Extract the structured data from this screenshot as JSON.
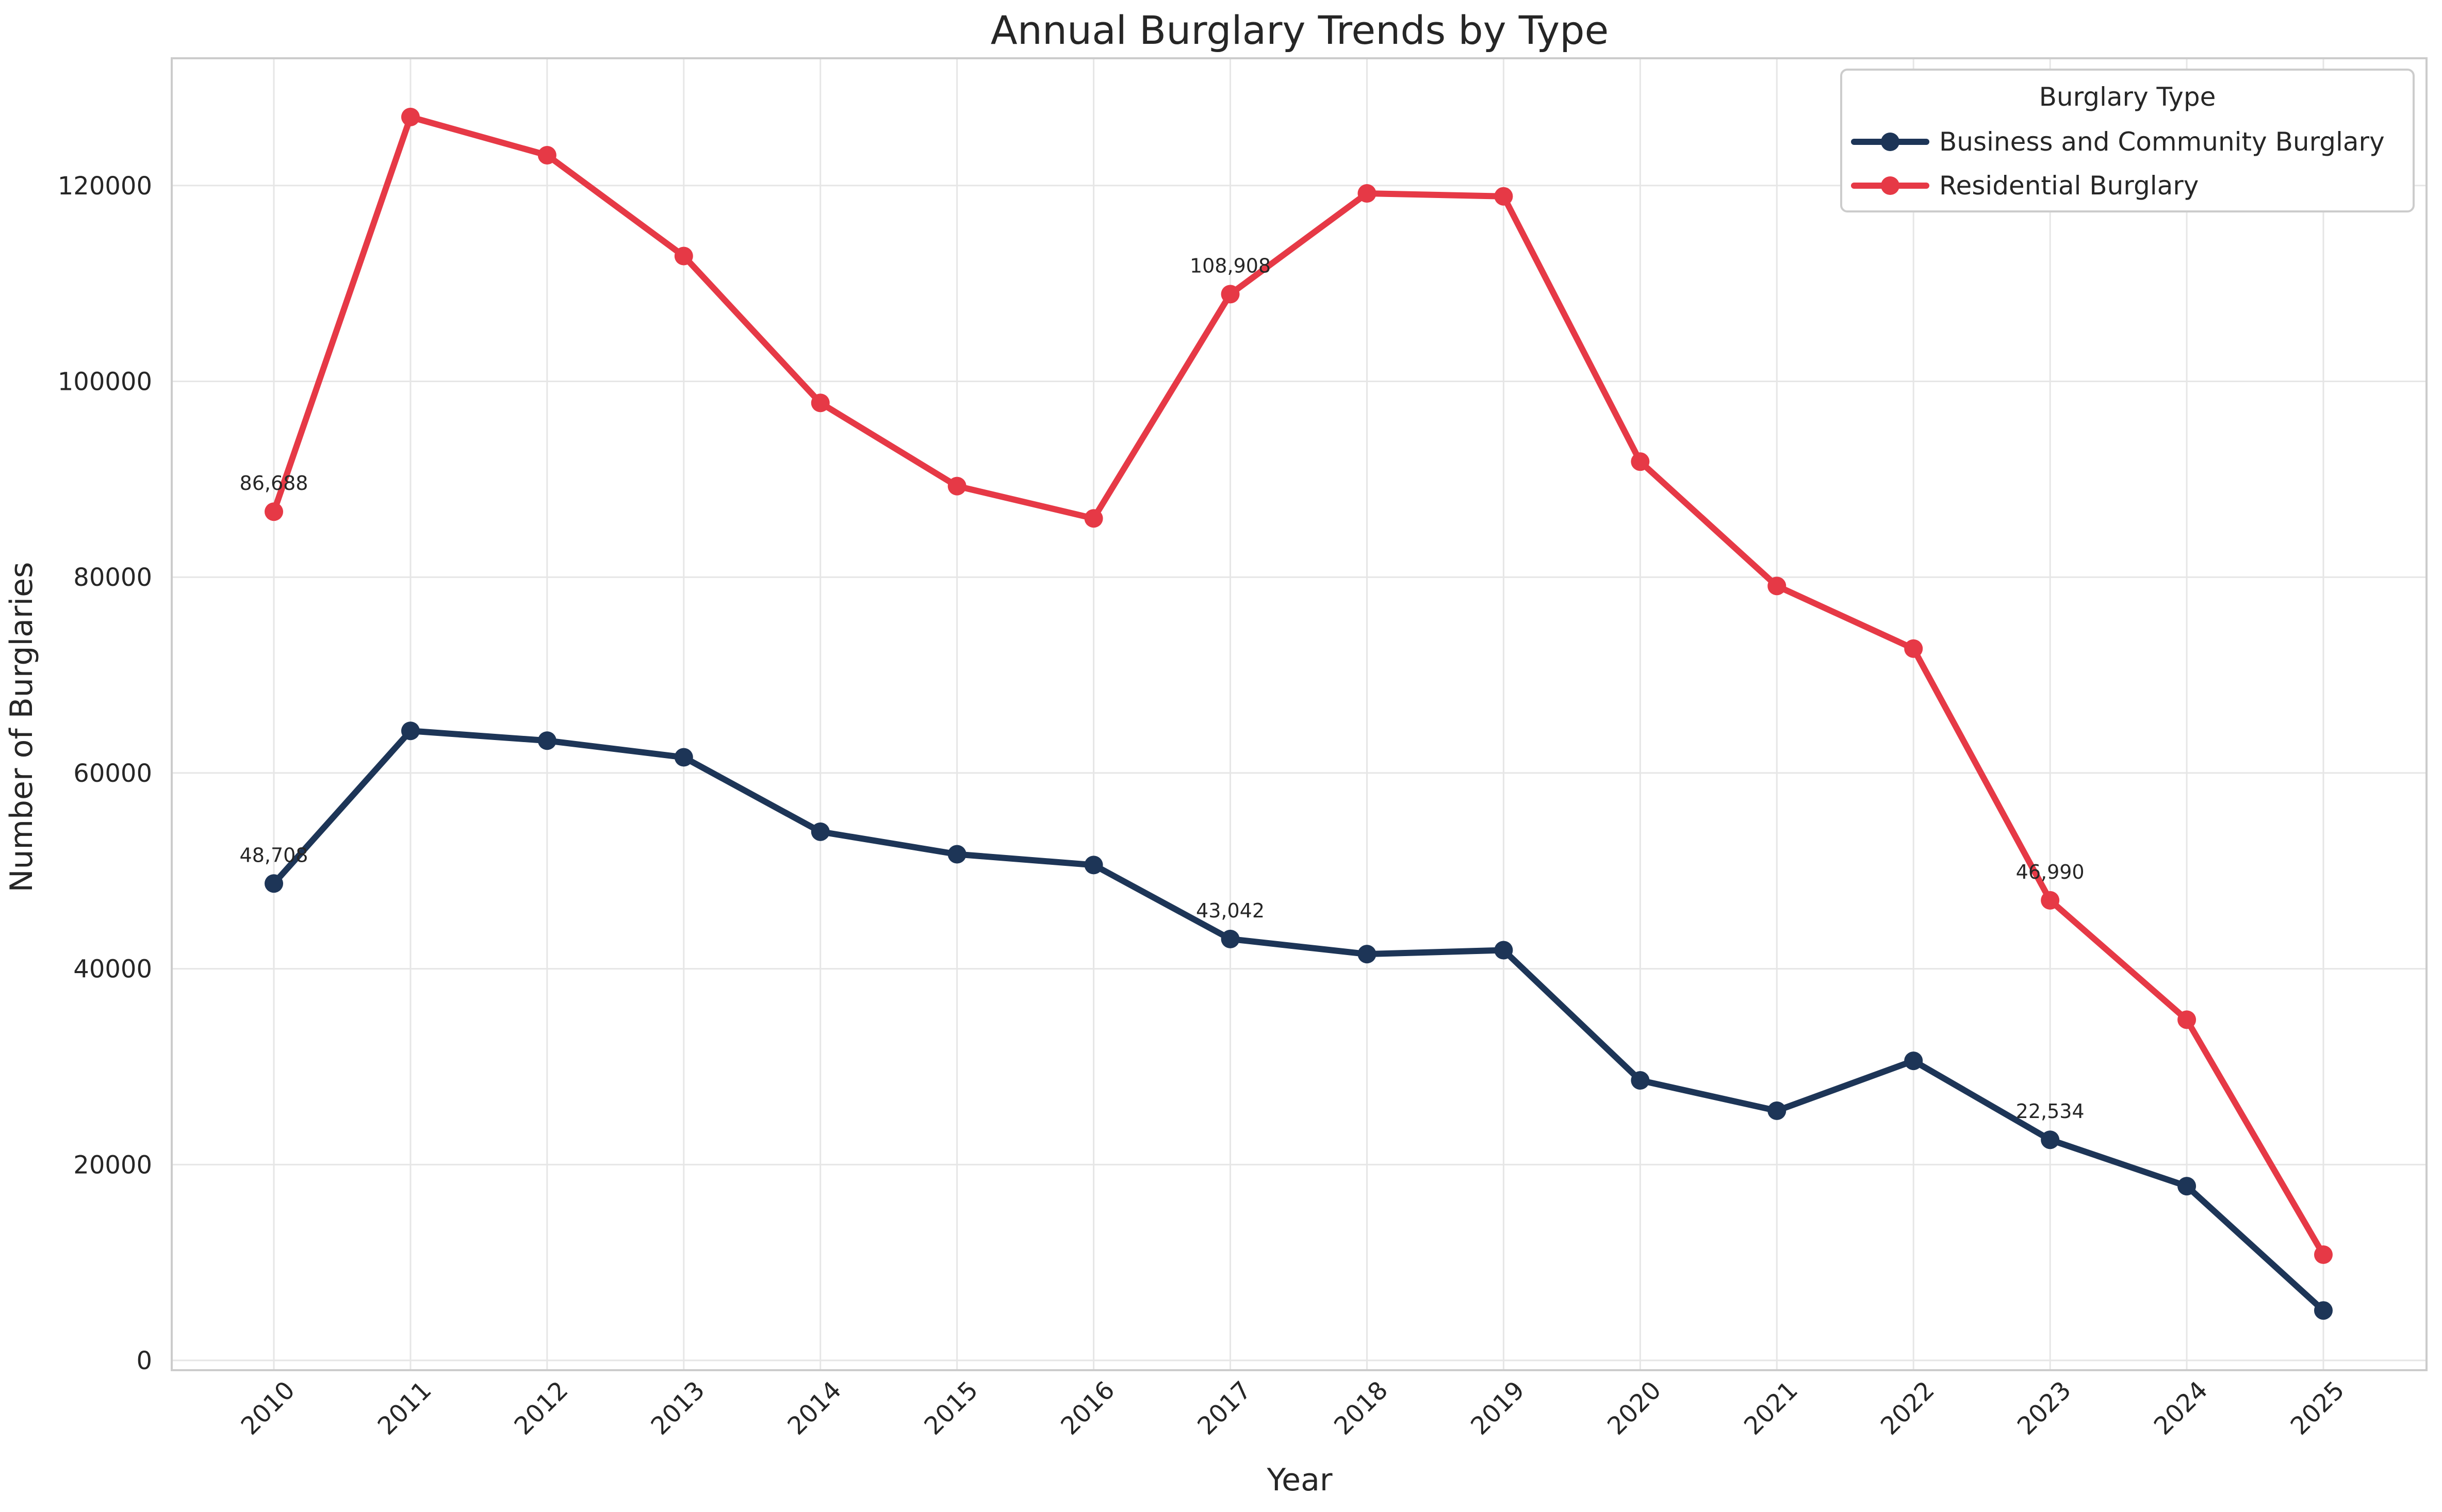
{
  "chart_data": {
    "type": "line",
    "title": "Annual Burglary Trends by Type",
    "xlabel": "Year",
    "ylabel": "Number of Burglaries",
    "categories": [
      "2010",
      "2011",
      "2012",
      "2013",
      "2014",
      "2015",
      "2016",
      "2017",
      "2018",
      "2019",
      "2020",
      "2021",
      "2022",
      "2023",
      "2024",
      "2025"
    ],
    "yticks": [
      0,
      20000,
      40000,
      60000,
      80000,
      100000,
      120000
    ],
    "ylim": [
      -1000,
      133000
    ],
    "grid": true,
    "legend": {
      "title": "Burglary Type",
      "position": "top-right"
    },
    "series": [
      {
        "name": "Business and Community Burglary",
        "color": "#1d3557",
        "values": [
          48708,
          64300,
          63300,
          61600,
          54000,
          51700,
          50600,
          43042,
          41500,
          41900,
          28600,
          25500,
          30600,
          22534,
          17800,
          5100
        ]
      },
      {
        "name": "Residential Burglary",
        "color": "#e63946",
        "values": [
          86688,
          127000,
          123100,
          112800,
          97800,
          89300,
          86000,
          108908,
          119200,
          118900,
          91800,
          79100,
          72700,
          46990,
          34800,
          10800
        ]
      }
    ],
    "annotations": [
      {
        "series": 0,
        "index": 0,
        "text": "48,708"
      },
      {
        "series": 0,
        "index": 7,
        "text": "43,042"
      },
      {
        "series": 0,
        "index": 13,
        "text": "22,534"
      },
      {
        "series": 1,
        "index": 0,
        "text": "86,688"
      },
      {
        "series": 1,
        "index": 7,
        "text": "108,908"
      },
      {
        "series": 1,
        "index": 13,
        "text": "46,990"
      }
    ]
  }
}
